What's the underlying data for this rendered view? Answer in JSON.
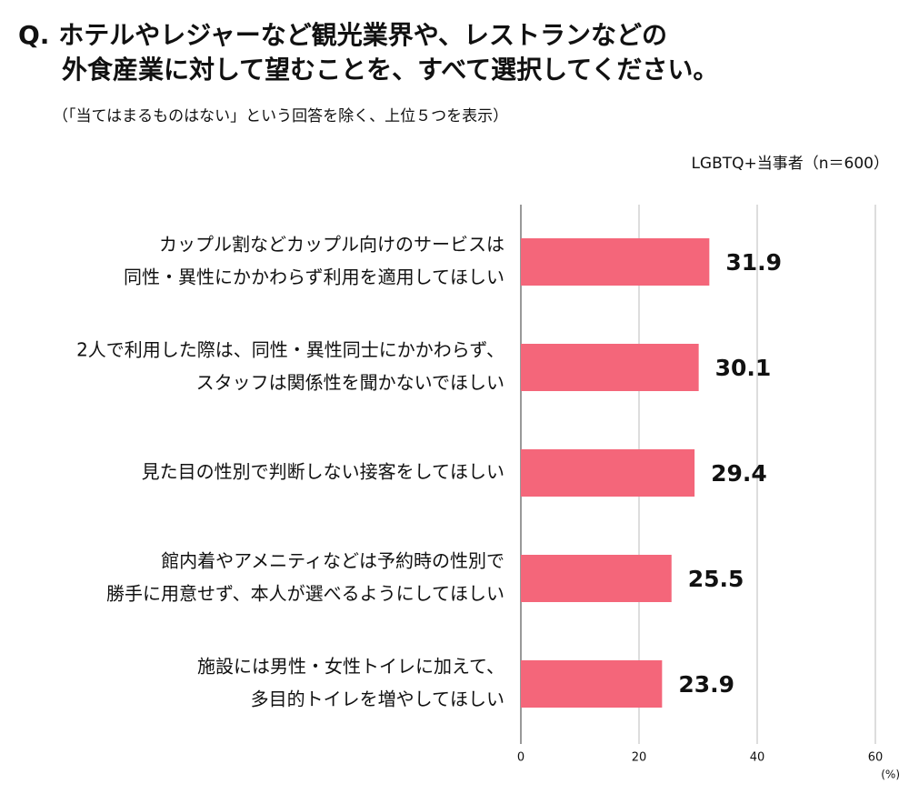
{
  "chart_data": {
    "type": "bar",
    "orientation": "horizontal",
    "title": [
      "Q. ホテルやレジャーなど観光業界や、レストランなどの",
      "外食産業に対して望むことを、すべて選択してください。"
    ],
    "subtitle": "（「当てはまるものはない」という回答を除く、上位５つを表示）",
    "note": "LGBTQ+当事者（n＝600）",
    "x_label": "(%)",
    "categories": [
      [
        "カップル割などカップル向けのサービスは",
        "同性・異性にかかわらず利用を適用してほしい"
      ],
      [
        "2人で利用した際は、同性・異性同士にかかわらず、",
        "スタッフは関係性を聞かないでほしい"
      ],
      [
        "見た目の性別で判断しない接客をしてほしい"
      ],
      [
        "館内着やアメニティなどは予約時の性別で",
        "勝手に用意せず、本人が選べるようにしてほしい"
      ],
      [
        "施設には男性・女性トイレに加えて、",
        "多目的トイレを増やしてほしい"
      ]
    ],
    "values": [
      31.9,
      30.1,
      29.4,
      25.5,
      23.9
    ],
    "color": "#f4667a",
    "xlim": [
      0,
      60
    ],
    "xticks": [
      0,
      20,
      40,
      60
    ],
    "grid": true
  }
}
